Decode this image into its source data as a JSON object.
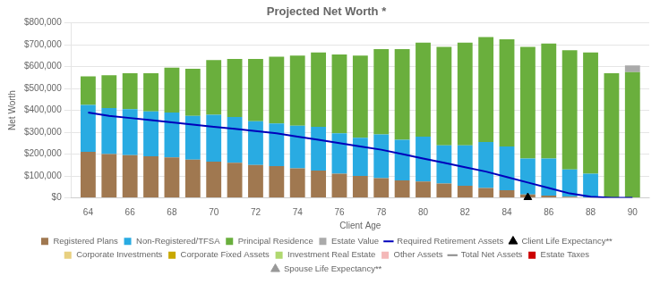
{
  "chart_data": {
    "type": "bar",
    "title": "Projected Net Worth *",
    "xlabel": "Client Age",
    "ylabel": "Net Worth",
    "stacked": true,
    "grid": "y",
    "legend": "bottom",
    "x": [
      64,
      65,
      66,
      67,
      68,
      69,
      70,
      71,
      72,
      73,
      74,
      75,
      76,
      77,
      78,
      79,
      80,
      81,
      82,
      83,
      84,
      85,
      86,
      87,
      88,
      89,
      90
    ],
    "xlim": [
      63.2,
      90.8
    ],
    "xticks": [
      64,
      66,
      68,
      70,
      72,
      74,
      76,
      78,
      80,
      82,
      84,
      86,
      88,
      90
    ],
    "ylim": [
      0,
      800000
    ],
    "yticks": [
      {
        "value": 0,
        "label": "$0"
      },
      {
        "value": 100000,
        "label": "$100,000"
      },
      {
        "value": 200000,
        "label": "$200,000"
      },
      {
        "value": 300000,
        "label": "$300,000"
      },
      {
        "value": 400000,
        "label": "$400,000"
      },
      {
        "value": 500000,
        "label": "$500,000"
      },
      {
        "value": 600000,
        "label": "$600,000"
      },
      {
        "value": 700000,
        "label": "$700,000"
      },
      {
        "value": 800000,
        "label": "$800,000"
      }
    ],
    "series": [
      {
        "name": "Registered Plans",
        "type": "bar",
        "color": "#A07850",
        "values": [
          210000,
          200000,
          195000,
          190000,
          185000,
          175000,
          165000,
          160000,
          150000,
          145000,
          135000,
          125000,
          110000,
          100000,
          90000,
          80000,
          75000,
          65000,
          55000,
          45000,
          35000,
          15000,
          10000,
          5000,
          0,
          0,
          0
        ]
      },
      {
        "name": "Non-Registered/TFSA",
        "type": "bar",
        "color": "#29ABE2",
        "values": [
          215000,
          210000,
          210000,
          205000,
          205000,
          200000,
          215000,
          210000,
          200000,
          195000,
          195000,
          200000,
          185000,
          175000,
          200000,
          185000,
          205000,
          175000,
          185000,
          210000,
          200000,
          165000,
          170000,
          125000,
          110000,
          0,
          0
        ]
      },
      {
        "name": "Principal Residence",
        "type": "bar",
        "color": "#6AAF3D",
        "values": [
          130000,
          150000,
          165000,
          175000,
          205000,
          215000,
          250000,
          265000,
          285000,
          305000,
          320000,
          340000,
          360000,
          375000,
          390000,
          415000,
          430000,
          450000,
          470000,
          480000,
          490000,
          510000,
          525000,
          545000,
          555000,
          570000,
          575000
        ]
      },
      {
        "name": "Estate Value",
        "type": "bar",
        "color": "#AAAAAA",
        "values": [
          0,
          0,
          0,
          0,
          0,
          0,
          0,
          0,
          0,
          0,
          0,
          0,
          0,
          0,
          0,
          0,
          0,
          0,
          0,
          0,
          0,
          0,
          0,
          0,
          0,
          0,
          30000
        ]
      },
      {
        "name": "Required Retirement Assets",
        "type": "line",
        "line_style": "solid",
        "color": "#0000BB",
        "values": [
          390000,
          375000,
          365000,
          355000,
          345000,
          335000,
          325000,
          315000,
          305000,
          295000,
          280000,
          265000,
          250000,
          235000,
          220000,
          200000,
          180000,
          160000,
          140000,
          120000,
          95000,
          70000,
          45000,
          20000,
          5000,
          0,
          0
        ]
      },
      {
        "name": "Client Life Expectancy**",
        "type": "scatter",
        "marker": "triangle",
        "color": "#000000",
        "values": [
          null,
          null,
          null,
          null,
          null,
          null,
          null,
          null,
          null,
          null,
          null,
          null,
          null,
          null,
          null,
          null,
          null,
          null,
          null,
          null,
          null,
          2000,
          null,
          null,
          null,
          null,
          null
        ]
      },
      {
        "name": "Corporate Investments",
        "type": "bar",
        "color": "#E8D080",
        "values": [
          null,
          null,
          null,
          null,
          null,
          null,
          null,
          null,
          null,
          null,
          null,
          null,
          null,
          null,
          null,
          null,
          null,
          null,
          null,
          null,
          null,
          null,
          null,
          null,
          null,
          null,
          null
        ]
      },
      {
        "name": "Corporate Fixed Assets",
        "type": "bar",
        "color": "#C8A800",
        "values": [
          null,
          null,
          null,
          null,
          null,
          null,
          null,
          null,
          null,
          null,
          null,
          null,
          null,
          null,
          null,
          null,
          null,
          null,
          null,
          null,
          null,
          null,
          null,
          null,
          null,
          null,
          null
        ]
      },
      {
        "name": "Investment Real Estate",
        "type": "bar",
        "color": "#B0D870",
        "values": [
          null,
          null,
          null,
          null,
          null,
          null,
          null,
          null,
          null,
          null,
          null,
          null,
          null,
          null,
          null,
          null,
          null,
          null,
          null,
          null,
          null,
          null,
          null,
          null,
          null,
          null,
          null
        ]
      },
      {
        "name": "Other Assets",
        "type": "bar",
        "color": "#F4B8B8",
        "values": [
          null,
          null,
          null,
          null,
          null,
          null,
          null,
          null,
          null,
          null,
          null,
          null,
          null,
          null,
          null,
          null,
          null,
          null,
          null,
          null,
          null,
          null,
          null,
          null,
          null,
          null,
          null
        ]
      },
      {
        "name": "Total Net Assets",
        "type": "line",
        "line_style": "solid",
        "color": "#888888",
        "values": [
          null,
          null,
          null,
          null,
          null,
          null,
          null,
          null,
          null,
          null,
          null,
          null,
          null,
          null,
          null,
          null,
          null,
          null,
          null,
          null,
          null,
          null,
          null,
          null,
          null,
          null,
          null
        ]
      },
      {
        "name": "Estate Taxes",
        "type": "bar",
        "color": "#CC0000",
        "values": [
          null,
          null,
          null,
          null,
          null,
          null,
          null,
          null,
          null,
          null,
          null,
          null,
          null,
          null,
          null,
          null,
          null,
          null,
          null,
          null,
          null,
          null,
          null,
          null,
          null,
          null,
          null
        ]
      },
      {
        "name": "Spouse Life Expectancy**",
        "type": "scatter",
        "marker": "triangle",
        "color": "#999999",
        "values": [
          null,
          null,
          null,
          null,
          null,
          null,
          null,
          null,
          null,
          null,
          null,
          null,
          null,
          null,
          null,
          null,
          null,
          null,
          null,
          null,
          null,
          null,
          null,
          null,
          null,
          null,
          null
        ]
      }
    ]
  }
}
